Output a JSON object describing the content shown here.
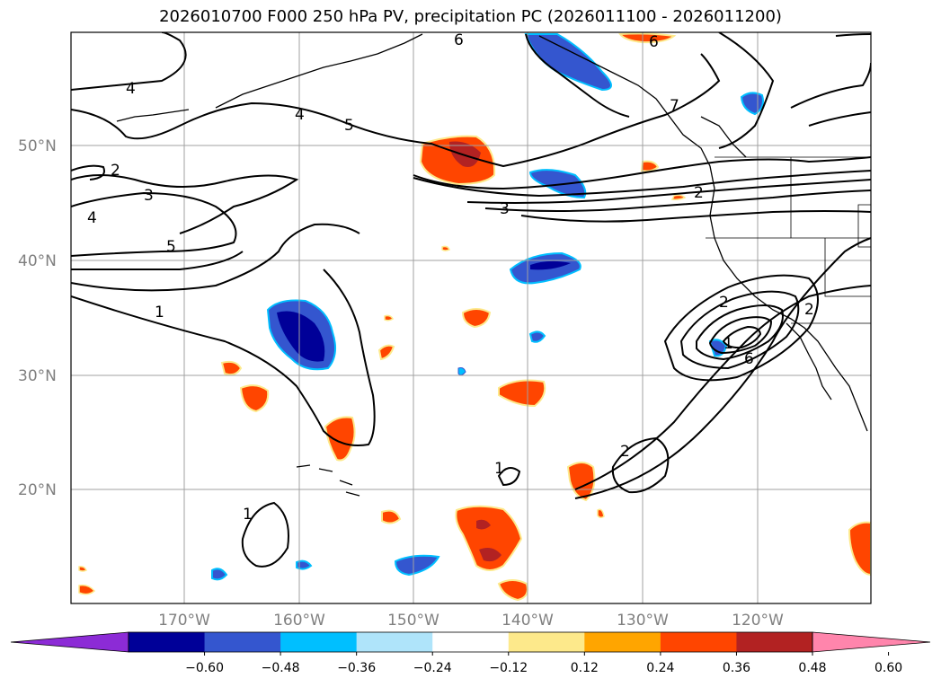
{
  "title": "2026010700 F000 250 hPa PV, precipitation PC (2026011100 - 2026011200)",
  "map": {
    "lat_labels": [
      "50°N",
      "40°N",
      "30°N",
      "20°N"
    ],
    "lon_labels": [
      "170°W",
      "160°W",
      "150°W",
      "140°W",
      "130°W",
      "120°W"
    ],
    "pv_contour_labels": [
      "6",
      "6",
      "4",
      "4",
      "5",
      "7",
      "2",
      "3",
      "4",
      "5",
      "2",
      "3",
      "1",
      "2",
      "1",
      "1",
      "1",
      "2",
      "2",
      "6"
    ]
  },
  "colorbar": {
    "ticks": [
      "−0.60",
      "−0.48",
      "−0.36",
      "−0.24",
      "−0.12",
      "0.12",
      "0.24",
      "0.36",
      "0.48",
      "0.60"
    ],
    "colors": [
      "#8c2bd6",
      "#000098",
      "#3456cf",
      "#00bfff",
      "#afe4fa",
      "#ffffff",
      "#fde98b",
      "#ffa500",
      "#ff4500",
      "#b22222",
      "#ff85ac"
    ]
  }
}
